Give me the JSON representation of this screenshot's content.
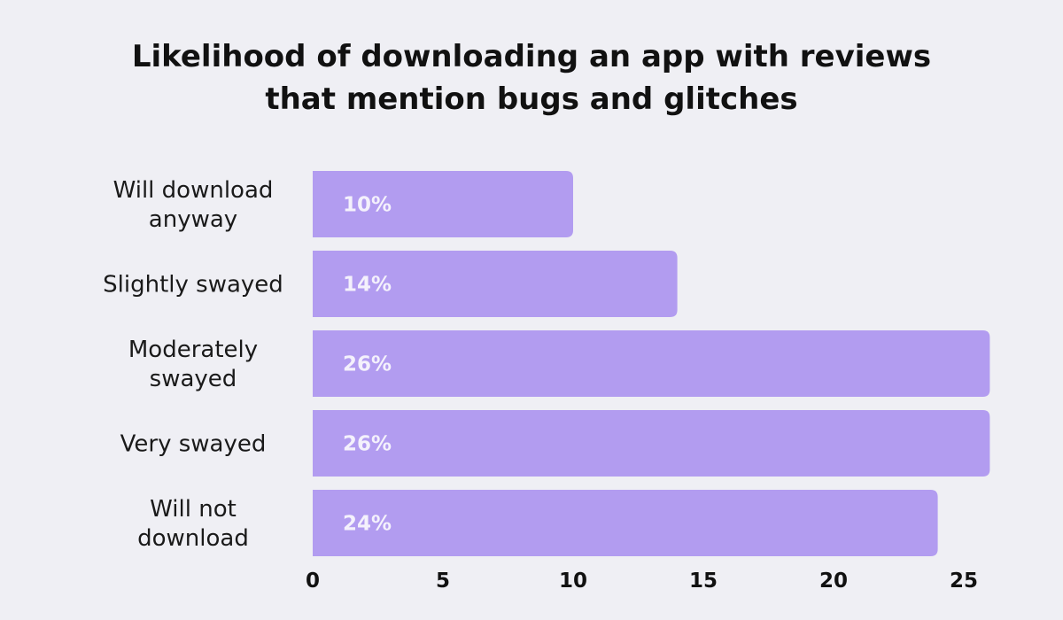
{
  "chart_data": {
    "type": "bar",
    "orientation": "horizontal",
    "title_lines": [
      "Likelihood of downloading an app with reviews",
      "that mention bugs and glitches"
    ],
    "categories": [
      [
        "Will download",
        "anyway"
      ],
      [
        "Slightly swayed"
      ],
      [
        "Moderately",
        "swayed"
      ],
      [
        "Very swayed"
      ],
      [
        "Will not",
        "download"
      ]
    ],
    "values": [
      10,
      14,
      26,
      26,
      24
    ],
    "value_labels": [
      "10%",
      "14%",
      "26%",
      "26%",
      "24%"
    ],
    "xlim": [
      0,
      26
    ],
    "xticks": [
      0,
      5,
      10,
      15,
      20,
      25
    ],
    "xlabel": "",
    "ylabel": "",
    "grid": false,
    "legend": "none"
  },
  "colors": {
    "background": "#efeff4",
    "bar": "#b29cf0",
    "value_label": "#f4f1fc",
    "text": "#111111"
  }
}
